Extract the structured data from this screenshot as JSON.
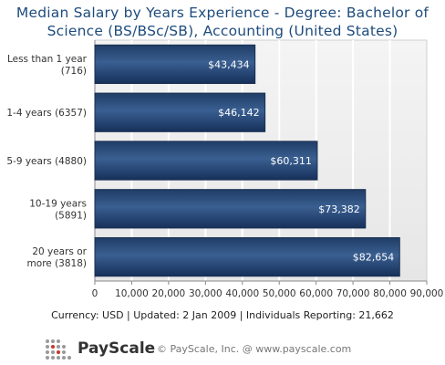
{
  "chart_data": {
    "type": "bar",
    "orientation": "horizontal",
    "title_lines": [
      "Median Salary by Years Experience - Degree: Bachelor of",
      "Science (BS/BSc/SB), Accounting (United States)"
    ],
    "categories": [
      [
        "Less than 1 year",
        "(716)"
      ],
      [
        "1-4 years (6357)"
      ],
      [
        "5-9 years (4880)"
      ],
      [
        "10-19 years",
        "(5891)"
      ],
      [
        "20 years or",
        "more (3818)"
      ]
    ],
    "values": [
      43434,
      46142,
      60311,
      73382,
      82654
    ],
    "value_labels": [
      "$43,434",
      "$46,142",
      "$60,311",
      "$73,382",
      "$82,654"
    ],
    "xlim": [
      0,
      90000
    ],
    "x_ticks": [
      "0",
      "10,000",
      "20,000",
      "30,000",
      "40,000",
      "50,000",
      "60,000",
      "70,000",
      "80,000",
      "90,000"
    ],
    "grid": true,
    "bar_color": "#2c5282"
  },
  "footer": {
    "info": "Currency: USD  |  Updated: 2 Jan 2009  |  Individuals Reporting: 21,662",
    "brand": "PayScale",
    "copyright": "© PayScale, Inc. @ www.payscale.com"
  }
}
